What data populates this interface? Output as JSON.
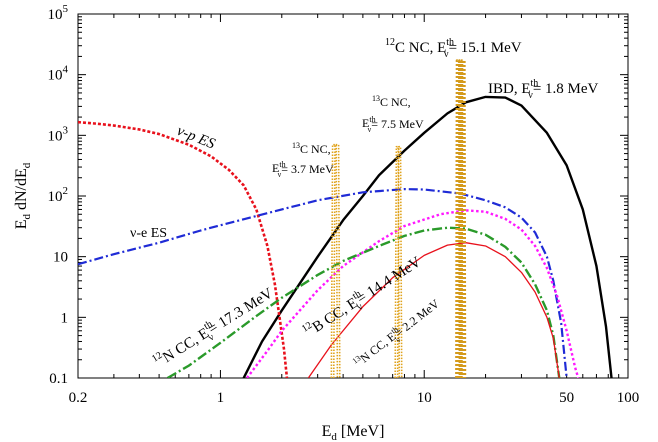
{
  "chart_data": {
    "type": "line",
    "xscale": "log",
    "yscale": "log",
    "xlim": [
      0.2,
      100
    ],
    "ylim": [
      0.1,
      100000
    ],
    "xlabel": "E_d [MeV]",
    "ylabel": "E_d dN/dE_d",
    "x_ticks": [
      {
        "v": 0.2,
        "label": "0.2"
      },
      {
        "v": 1,
        "label": "1"
      },
      {
        "v": 10,
        "label": "10"
      },
      {
        "v": 50,
        "label": "50"
      },
      {
        "v": 100,
        "label": "100"
      }
    ],
    "y_ticks": [
      {
        "v": 0.1,
        "label": "0.1"
      },
      {
        "v": 1,
        "label": "1"
      },
      {
        "v": 10,
        "label": "10"
      },
      {
        "v": 100,
        "label": "10",
        "sup": "2"
      },
      {
        "v": 1000,
        "label": "10",
        "sup": "3"
      },
      {
        "v": 10000,
        "label": "10",
        "sup": "4"
      },
      {
        "v": 100000,
        "label": "10",
        "sup": "5"
      }
    ],
    "series": [
      {
        "name": "IBD",
        "color": "#000000",
        "dash": "solid",
        "width": 2.4,
        "points": [
          [
            1.3,
            0.1
          ],
          [
            1.6,
            0.4
          ],
          [
            2,
            1.3
          ],
          [
            3,
            10
          ],
          [
            4,
            40
          ],
          [
            5,
            100
          ],
          [
            6,
            220
          ],
          [
            8,
            560
          ],
          [
            10,
            1100
          ],
          [
            13,
            2300
          ],
          [
            16,
            3500
          ],
          [
            20,
            4300
          ],
          [
            25,
            4200
          ],
          [
            30,
            3100
          ],
          [
            40,
            1100
          ],
          [
            50,
            320
          ],
          [
            60,
            60
          ],
          [
            70,
            7
          ],
          [
            78,
            0.7
          ],
          [
            83,
            0.1
          ]
        ]
      },
      {
        "name": "nu-p ES",
        "color": "#e8111c",
        "dash": "3,2",
        "width": 2.6,
        "points": [
          [
            0.2,
            1650
          ],
          [
            0.25,
            1550
          ],
          [
            0.3,
            1450
          ],
          [
            0.4,
            1250
          ],
          [
            0.5,
            1050
          ],
          [
            0.7,
            700
          ],
          [
            0.9,
            450
          ],
          [
            1.1,
            270
          ],
          [
            1.3,
            150
          ],
          [
            1.5,
            60
          ],
          [
            1.7,
            15
          ],
          [
            1.85,
            3.5
          ],
          [
            1.95,
            1
          ],
          [
            2.05,
            0.3
          ],
          [
            2.12,
            0.1
          ]
        ]
      },
      {
        "name": "nu-e ES",
        "color": "#1f2bd6",
        "dash": "9,3,2,3",
        "width": 2.2,
        "points": [
          [
            0.2,
            7.5
          ],
          [
            0.3,
            11
          ],
          [
            0.5,
            17
          ],
          [
            0.8,
            27
          ],
          [
            1,
            33
          ],
          [
            2,
            60
          ],
          [
            3,
            85
          ],
          [
            5,
            115
          ],
          [
            8,
            130
          ],
          [
            10,
            128
          ],
          [
            15,
            110
          ],
          [
            20,
            85
          ],
          [
            25,
            65
          ],
          [
            30,
            44
          ],
          [
            35,
            25
          ],
          [
            40,
            10
          ],
          [
            43,
            4
          ],
          [
            47,
            0.8
          ],
          [
            50,
            0.1
          ]
        ]
      },
      {
        "name": "12B CC",
        "color": "#ff19ff",
        "dash": "2.5,2.5",
        "width": 2.4,
        "points": [
          [
            1.35,
            0.1
          ],
          [
            1.7,
            0.28
          ],
          [
            2,
            0.6
          ],
          [
            3,
            2.8
          ],
          [
            4,
            7
          ],
          [
            6,
            18
          ],
          [
            8,
            32
          ],
          [
            12,
            50
          ],
          [
            16,
            58
          ],
          [
            20,
            55
          ],
          [
            25,
            42
          ],
          [
            30,
            28
          ],
          [
            35,
            15
          ],
          [
            40,
            6.5
          ],
          [
            45,
            2.2
          ],
          [
            50,
            0.6
          ],
          [
            55,
            0.15
          ],
          [
            57,
            0.1
          ]
        ]
      },
      {
        "name": "12N CC",
        "color": "#2a9a2a",
        "dash": "10,3,2,3",
        "width": 2.4,
        "points": [
          [
            0.55,
            0.1
          ],
          [
            0.7,
            0.16
          ],
          [
            1,
            0.38
          ],
          [
            1.5,
            1.05
          ],
          [
            2,
            2.1
          ],
          [
            3,
            5
          ],
          [
            4,
            8.5
          ],
          [
            6,
            15
          ],
          [
            8,
            22
          ],
          [
            10,
            27
          ],
          [
            13,
            30
          ],
          [
            16,
            29
          ],
          [
            20,
            23
          ],
          [
            25,
            14.5
          ],
          [
            30,
            8
          ],
          [
            35,
            3.5
          ],
          [
            40,
            1.3
          ],
          [
            43,
            0.5
          ],
          [
            46,
            0.1
          ]
        ]
      },
      {
        "name": "13N CC",
        "color": "#e8111c",
        "dash": "solid",
        "width": 1.3,
        "points": [
          [
            2.7,
            0.1
          ],
          [
            3.5,
            0.35
          ],
          [
            5,
            1.5
          ],
          [
            7,
            4.5
          ],
          [
            10,
            10.5
          ],
          [
            13,
            15.5
          ],
          [
            16,
            17
          ],
          [
            20,
            15
          ],
          [
            25,
            10
          ],
          [
            30,
            5.5
          ],
          [
            35,
            2.6
          ],
          [
            40,
            1
          ],
          [
            43,
            0.45
          ],
          [
            46,
            0.1
          ]
        ]
      },
      {
        "name": "13C NC 3.7",
        "color": "#e0a31d",
        "dash": "1.5,1.5",
        "width": 1.6,
        "lines": 2,
        "points": [
          [
            3.55,
            0.1
          ],
          [
            3.6,
            700
          ],
          [
            3.75,
            700
          ],
          [
            3.8,
            0.1
          ]
        ]
      },
      {
        "name": "13C NC 7.5",
        "color": "#e0a31d",
        "dash": "1.5,1.5",
        "width": 1.6,
        "lines": 2,
        "points": [
          [
            7.3,
            0.1
          ],
          [
            7.4,
            650
          ],
          [
            7.55,
            650
          ],
          [
            7.65,
            0.1
          ]
        ]
      },
      {
        "name": "12C NC 15.1",
        "color": "#d49a1b",
        "dash": "2,2",
        "width": 2.8,
        "lines": 3,
        "points": [
          [
            14.8,
            0.1
          ],
          [
            14.9,
            17000
          ],
          [
            15.1,
            17000
          ],
          [
            15.3,
            17000
          ],
          [
            15.4,
            0.1
          ]
        ]
      }
    ],
    "annotations": [
      {
        "id": "12c-nc",
        "text": "C NC, E",
        "pre_sup": "12",
        "sub": "ν",
        "sup": "th",
        "tail": "= 15.1 MeV",
        "color": "#000000"
      },
      {
        "id": "ibd",
        "text": "IBD, E",
        "sub": "ν",
        "sup": "th",
        "tail": "= 1.8 MeV",
        "color": "#000000"
      },
      {
        "id": "13c-nc-a",
        "text": "C NC,",
        "pre_sup": "13",
        "color": "#000000"
      },
      {
        "id": "13c-nc-a-th",
        "text": "E",
        "sub": "ν",
        "sup": "th",
        "tail": "= 3.7 MeV",
        "color": "#000000"
      },
      {
        "id": "13c-nc-b",
        "text": "C NC,",
        "pre_sup": "13",
        "color": "#000000"
      },
      {
        "id": "13c-nc-b-th",
        "text": "E",
        "sub": "ν",
        "sup": "th",
        "tail": "= 7.5 MeV",
        "color": "#000000"
      },
      {
        "id": "nup-es",
        "text": "ν-p ES",
        "color": "#000000"
      },
      {
        "id": "nue-es",
        "text": "ν-e ES",
        "color": "#000000"
      },
      {
        "id": "12n-cc",
        "text": "N CC, E",
        "pre_sup": "12",
        "sub": "ν",
        "sup": "th",
        "tail": "= 17.3 MeV",
        "color": "#000000"
      },
      {
        "id": "12b-cc",
        "text": "B CC, E",
        "pre_sup": "12",
        "sub": "ν",
        "sup": "th",
        "tail": "= 14.4 MeV",
        "color": "#000000"
      },
      {
        "id": "13n-cc",
        "text": "N CC, E",
        "pre_sup": "13",
        "sub": "ν",
        "sup": "th",
        "tail": "= 2.2 MeV",
        "color": "#000000"
      }
    ],
    "axis_labels": {
      "x_main": "E",
      "x_sub": "d",
      "x_tail": " [MeV]",
      "y_a": "E",
      "y_a_sub": "d",
      "y_b": " dN/dE",
      "y_b_sub": "d"
    }
  }
}
